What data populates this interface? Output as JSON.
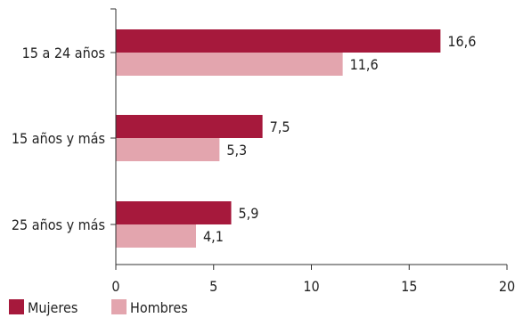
{
  "chart_data": {
    "type": "bar",
    "orientation": "horizontal",
    "categories": [
      "15 a 24 años",
      "15 años y más",
      "25 años y más"
    ],
    "series": [
      {
        "name": "Mujeres",
        "values": [
          16.6,
          7.5,
          5.9
        ],
        "labels": [
          "16,6",
          "7,5",
          "5,9"
        ],
        "color": "#A6193C"
      },
      {
        "name": "Hombres",
        "values": [
          11.6,
          5.3,
          4.1
        ],
        "labels": [
          "11,6",
          "5,3",
          "4,1"
        ],
        "color": "#E3A5AE"
      }
    ],
    "xlim": [
      0,
      20
    ],
    "xticks": [
      0,
      5,
      10,
      15,
      20
    ],
    "xtick_labels": [
      "0",
      "5",
      "10",
      "15",
      "20"
    ],
    "grid": false,
    "legend_placement": "bottom-left"
  }
}
